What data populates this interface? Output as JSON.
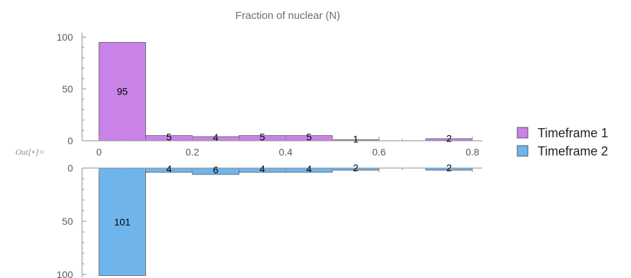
{
  "output_label": "Out[∘]=",
  "chart_data": {
    "type": "bar",
    "layout": "paired-histogram",
    "title": "Fraction of nuclear (N)",
    "bin_width": 0.1,
    "x_ticks": [
      0,
      0.2,
      0.4,
      0.6,
      0.8
    ],
    "x_tick_labels": [
      "0",
      "0.2",
      "0.4",
      "0.6",
      "0.8"
    ],
    "xlim": [
      0,
      0.8
    ],
    "y_ticks": [
      0,
      50,
      100
    ],
    "y_tick_labels": [
      "0",
      "50",
      "100"
    ],
    "ylim": [
      0,
      100
    ],
    "legend_position": "right",
    "series": [
      {
        "name": "Timeframe 1",
        "color": "#c983e8",
        "direction": "up",
        "bins": [
          {
            "x0": 0.0,
            "value": 95,
            "label": "95"
          },
          {
            "x0": 0.1,
            "value": 5,
            "label": "5"
          },
          {
            "x0": 0.2,
            "value": 4,
            "label": "4"
          },
          {
            "x0": 0.3,
            "value": 5,
            "label": "5"
          },
          {
            "x0": 0.4,
            "value": 5,
            "label": "5"
          },
          {
            "x0": 0.5,
            "value": 1,
            "label": "1"
          },
          {
            "x0": 0.7,
            "value": 2,
            "label": "2"
          }
        ]
      },
      {
        "name": "Timeframe 2",
        "color": "#6fb5ec",
        "direction": "down",
        "bins": [
          {
            "x0": 0.0,
            "value": 101,
            "label": "101"
          },
          {
            "x0": 0.1,
            "value": 4,
            "label": "4"
          },
          {
            "x0": 0.2,
            "value": 6,
            "label": "6"
          },
          {
            "x0": 0.3,
            "value": 4,
            "label": "4"
          },
          {
            "x0": 0.4,
            "value": 4,
            "label": "4"
          },
          {
            "x0": 0.5,
            "value": 2,
            "label": "2"
          },
          {
            "x0": 0.7,
            "value": 2,
            "label": "2"
          }
        ]
      }
    ]
  }
}
